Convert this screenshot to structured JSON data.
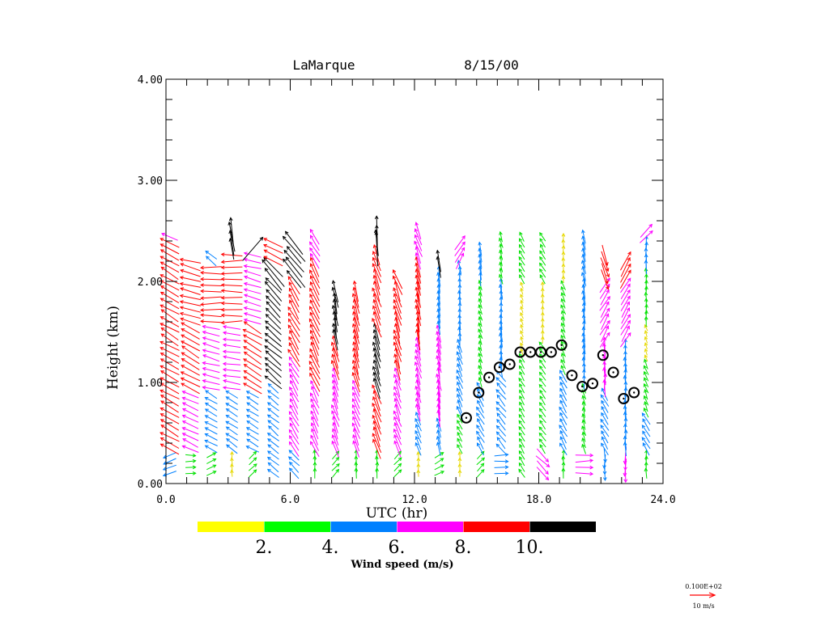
{
  "chart_data": {
    "type": "vector-field",
    "title_station": "LaMarque",
    "title_date": "8/15/00",
    "xlabel": "UTC (hr)",
    "ylabel": "Height (km)",
    "xlim": [
      0.0,
      24.0
    ],
    "ylim": [
      0.0,
      4.0
    ],
    "x_ticks": [
      {
        "value": 0,
        "label": "0.0"
      },
      {
        "value": 6,
        "label": "6.0"
      },
      {
        "value": 12,
        "label": "12.0"
      },
      {
        "value": 18,
        "label": "18.0"
      },
      {
        "value": 24,
        "label": "24.0"
      }
    ],
    "x_minor_step": 1,
    "y_ticks": [
      {
        "value": 0,
        "label": "0.00"
      },
      {
        "value": 1,
        "label": "1.00"
      },
      {
        "value": 2,
        "label": "2.00"
      },
      {
        "value": 3,
        "label": "3.00"
      },
      {
        "value": 4,
        "label": "4.00"
      }
    ],
    "y_minor_step": 0.2,
    "colorbar": {
      "label": "Wind speed (m/s)",
      "bins": [
        {
          "min": 0,
          "max": 2,
          "color": "#ffff00"
        },
        {
          "min": 2,
          "max": 4,
          "color": "#00ff00"
        },
        {
          "min": 4,
          "max": 6,
          "color": "#0080ff"
        },
        {
          "min": 6,
          "max": 8,
          "color": "#ff00ff"
        },
        {
          "min": 8,
          "max": 10,
          "color": "#ff0000"
        },
        {
          "min": 10,
          "max": 12,
          "color": "#000000"
        }
      ],
      "tick_labels": [
        "2.",
        "4.",
        "6.",
        "8.",
        "10."
      ]
    },
    "reference_vector": {
      "scale_label": "0.100E+02",
      "label": "10 m/s",
      "color": "#ff0000"
    },
    "profiles": [
      {
        "time": 0.5,
        "top": 2.45,
        "regime": [
          [
            0.1,
            "blue",
            250
          ],
          [
            0.3,
            "red",
            300
          ],
          [
            1.8,
            "red",
            300
          ],
          [
            2.4,
            "magenta",
            290
          ]
        ]
      },
      {
        "time": 1.5,
        "top": 2.25,
        "regime": [
          [
            0.1,
            "green",
            90
          ],
          [
            0.3,
            "magenta",
            295
          ],
          [
            0.9,
            "red",
            300
          ],
          [
            1.6,
            "red",
            285
          ],
          [
            2.2,
            "red",
            275
          ]
        ]
      },
      {
        "time": 2.5,
        "top": 2.3,
        "regime": [
          [
            0.1,
            "green",
            60
          ],
          [
            0.3,
            "blue",
            300
          ],
          [
            0.9,
            "magenta",
            285
          ],
          [
            1.6,
            "red",
            270
          ],
          [
            2.2,
            "blue",
            310
          ]
        ]
      },
      {
        "time": 3.5,
        "top": 2.55,
        "regime": [
          [
            0.1,
            "yellow",
            0
          ],
          [
            0.3,
            "blue",
            305
          ],
          [
            0.9,
            "magenta",
            280
          ],
          [
            1.6,
            "red",
            270
          ],
          [
            2.3,
            "black",
            355
          ]
        ]
      },
      {
        "time": 4.5,
        "top": 2.35,
        "regime": [
          [
            0.1,
            "green",
            45
          ],
          [
            0.3,
            "blue",
            300
          ],
          [
            0.9,
            "red",
            300
          ],
          [
            1.6,
            "magenta",
            285
          ],
          [
            2.3,
            "black",
            35
          ]
        ]
      },
      {
        "time": 5.5,
        "top": 2.4,
        "regime": [
          [
            0.1,
            "blue",
            310
          ],
          [
            0.5,
            "blue",
            310
          ],
          [
            1.0,
            "black",
            310
          ],
          [
            1.6,
            "black",
            320
          ],
          [
            2.2,
            "red",
            300
          ]
        ]
      },
      {
        "time": 6.5,
        "top": 2.4,
        "regime": [
          [
            0.1,
            "blue",
            315
          ],
          [
            0.3,
            "magenta",
            330
          ],
          [
            1.2,
            "red",
            330
          ],
          [
            2.0,
            "black",
            320
          ]
        ]
      },
      {
        "time": 7.5,
        "top": 2.45,
        "regime": [
          [
            0.1,
            "green",
            0
          ],
          [
            0.3,
            "magenta",
            335
          ],
          [
            1.0,
            "red",
            335
          ],
          [
            2.2,
            "magenta",
            330
          ]
        ]
      },
      {
        "time": 8.5,
        "top": 1.95,
        "regime": [
          [
            0.1,
            "green",
            45
          ],
          [
            0.3,
            "magenta",
            340
          ],
          [
            1.1,
            "red",
            345
          ],
          [
            1.4,
            "black",
            350
          ]
        ]
      },
      {
        "time": 9.5,
        "top": 1.9,
        "regime": [
          [
            0.1,
            "green",
            0
          ],
          [
            0.3,
            "magenta",
            340
          ],
          [
            1.0,
            "red",
            345
          ],
          [
            1.9,
            "red",
            350
          ]
        ]
      },
      {
        "time": 10.5,
        "top": 2.55,
        "regime": [
          [
            0.1,
            "green",
            0
          ],
          [
            0.3,
            "red",
            340
          ],
          [
            0.9,
            "black",
            345
          ],
          [
            1.5,
            "red",
            340
          ],
          [
            2.3,
            "black",
            355
          ]
        ]
      },
      {
        "time": 11.5,
        "top": 2.05,
        "regime": [
          [
            0.1,
            "green",
            45
          ],
          [
            0.3,
            "magenta",
            340
          ],
          [
            1.1,
            "red",
            345
          ],
          [
            1.8,
            "red",
            340
          ]
        ]
      },
      {
        "time": 12.5,
        "top": 2.5,
        "regime": [
          [
            0.1,
            "yellow",
            0
          ],
          [
            0.3,
            "blue",
            340
          ],
          [
            0.7,
            "magenta",
            345
          ],
          [
            1.4,
            "red",
            350
          ],
          [
            2.2,
            "magenta",
            340
          ]
        ]
      },
      {
        "time": 13.5,
        "top": 2.2,
        "regime": [
          [
            0.1,
            "green",
            60
          ],
          [
            0.3,
            "blue",
            345
          ],
          [
            0.6,
            "magenta",
            350
          ],
          [
            1.5,
            "blue",
            355
          ],
          [
            2.1,
            "black",
            355
          ]
        ]
      },
      {
        "time": 14.5,
        "top": 2.4,
        "regime": [
          [
            0.1,
            "yellow",
            0
          ],
          [
            0.3,
            "green",
            330
          ],
          [
            0.7,
            "blue",
            340
          ],
          [
            1.4,
            "blue",
            355
          ],
          [
            2.2,
            "magenta",
            30
          ]
        ]
      },
      {
        "time": 15.5,
        "top": 2.35,
        "regime": [
          [
            0.1,
            "green",
            45
          ],
          [
            0.3,
            "blue",
            330
          ],
          [
            1.0,
            "green",
            345
          ],
          [
            2.0,
            "blue",
            355
          ]
        ]
      },
      {
        "time": 16.5,
        "top": 2.45,
        "regime": [
          [
            0.1,
            "blue",
            90
          ],
          [
            0.3,
            "blue",
            320
          ],
          [
            1.1,
            "blue",
            355
          ],
          [
            2.0,
            "green",
            345
          ]
        ]
      },
      {
        "time": 17.5,
        "top": 2.45,
        "regime": [
          [
            0.1,
            "green",
            330
          ],
          [
            0.3,
            "green",
            330
          ],
          [
            1.3,
            "yellow",
            340
          ],
          [
            2.0,
            "green",
            330
          ]
        ]
      },
      {
        "time": 18.5,
        "top": 2.45,
        "regime": [
          [
            0.1,
            "magenta",
            135
          ],
          [
            0.3,
            "green",
            325
          ],
          [
            1.4,
            "yellow",
            0
          ],
          [
            2.0,
            "green",
            330
          ]
        ]
      },
      {
        "time": 19.5,
        "top": 2.45,
        "regime": [
          [
            0.1,
            "green",
            0
          ],
          [
            0.3,
            "blue",
            330
          ],
          [
            1.1,
            "green",
            340
          ],
          [
            2.0,
            "yellow",
            0
          ]
        ]
      },
      {
        "time": 20.5,
        "top": 2.45,
        "regime": [
          [
            0.1,
            "magenta",
            90
          ],
          [
            0.3,
            "green",
            345
          ],
          [
            1.0,
            "blue",
            355
          ],
          [
            2.0,
            "blue",
            345
          ]
        ]
      },
      {
        "time": 21.5,
        "top": 2.3,
        "regime": [
          [
            0.1,
            "blue",
            180
          ],
          [
            0.3,
            "blue",
            330
          ],
          [
            0.9,
            "magenta",
            0
          ],
          [
            1.4,
            "magenta",
            30
          ],
          [
            2.0,
            "red",
            160
          ]
        ]
      },
      {
        "time": 22.5,
        "top": 2.2,
        "regime": [
          [
            0.1,
            "magenta",
            180
          ],
          [
            0.3,
            "blue",
            0
          ],
          [
            1.0,
            "blue",
            355
          ],
          [
            1.4,
            "magenta",
            30
          ],
          [
            2.0,
            "red",
            30
          ]
        ]
      },
      {
        "time": 23.5,
        "top": 2.5,
        "regime": [
          [
            0.1,
            "green",
            0
          ],
          [
            0.3,
            "blue",
            330
          ],
          [
            0.7,
            "green",
            340
          ],
          [
            1.2,
            "yellow",
            340
          ],
          [
            1.6,
            "green",
            0
          ],
          [
            2.1,
            "blue",
            0
          ],
          [
            2.4,
            "magenta",
            45
          ]
        ]
      }
    ],
    "boundary_layer_heights": [
      {
        "time": 14.5,
        "height": 0.65
      },
      {
        "time": 15.1,
        "height": 0.9
      },
      {
        "time": 15.6,
        "height": 1.05
      },
      {
        "time": 16.1,
        "height": 1.15
      },
      {
        "time": 16.6,
        "height": 1.18
      },
      {
        "time": 17.1,
        "height": 1.3
      },
      {
        "time": 17.6,
        "height": 1.3
      },
      {
        "time": 18.1,
        "height": 1.3
      },
      {
        "time": 18.6,
        "height": 1.3
      },
      {
        "time": 19.1,
        "height": 1.37
      },
      {
        "time": 19.6,
        "height": 1.07
      },
      {
        "time": 20.1,
        "height": 0.96
      },
      {
        "time": 20.6,
        "height": 0.99
      },
      {
        "time": 21.1,
        "height": 1.27
      },
      {
        "time": 21.6,
        "height": 1.1
      },
      {
        "time": 22.1,
        "height": 0.84
      },
      {
        "time": 22.6,
        "height": 0.9
      }
    ]
  }
}
